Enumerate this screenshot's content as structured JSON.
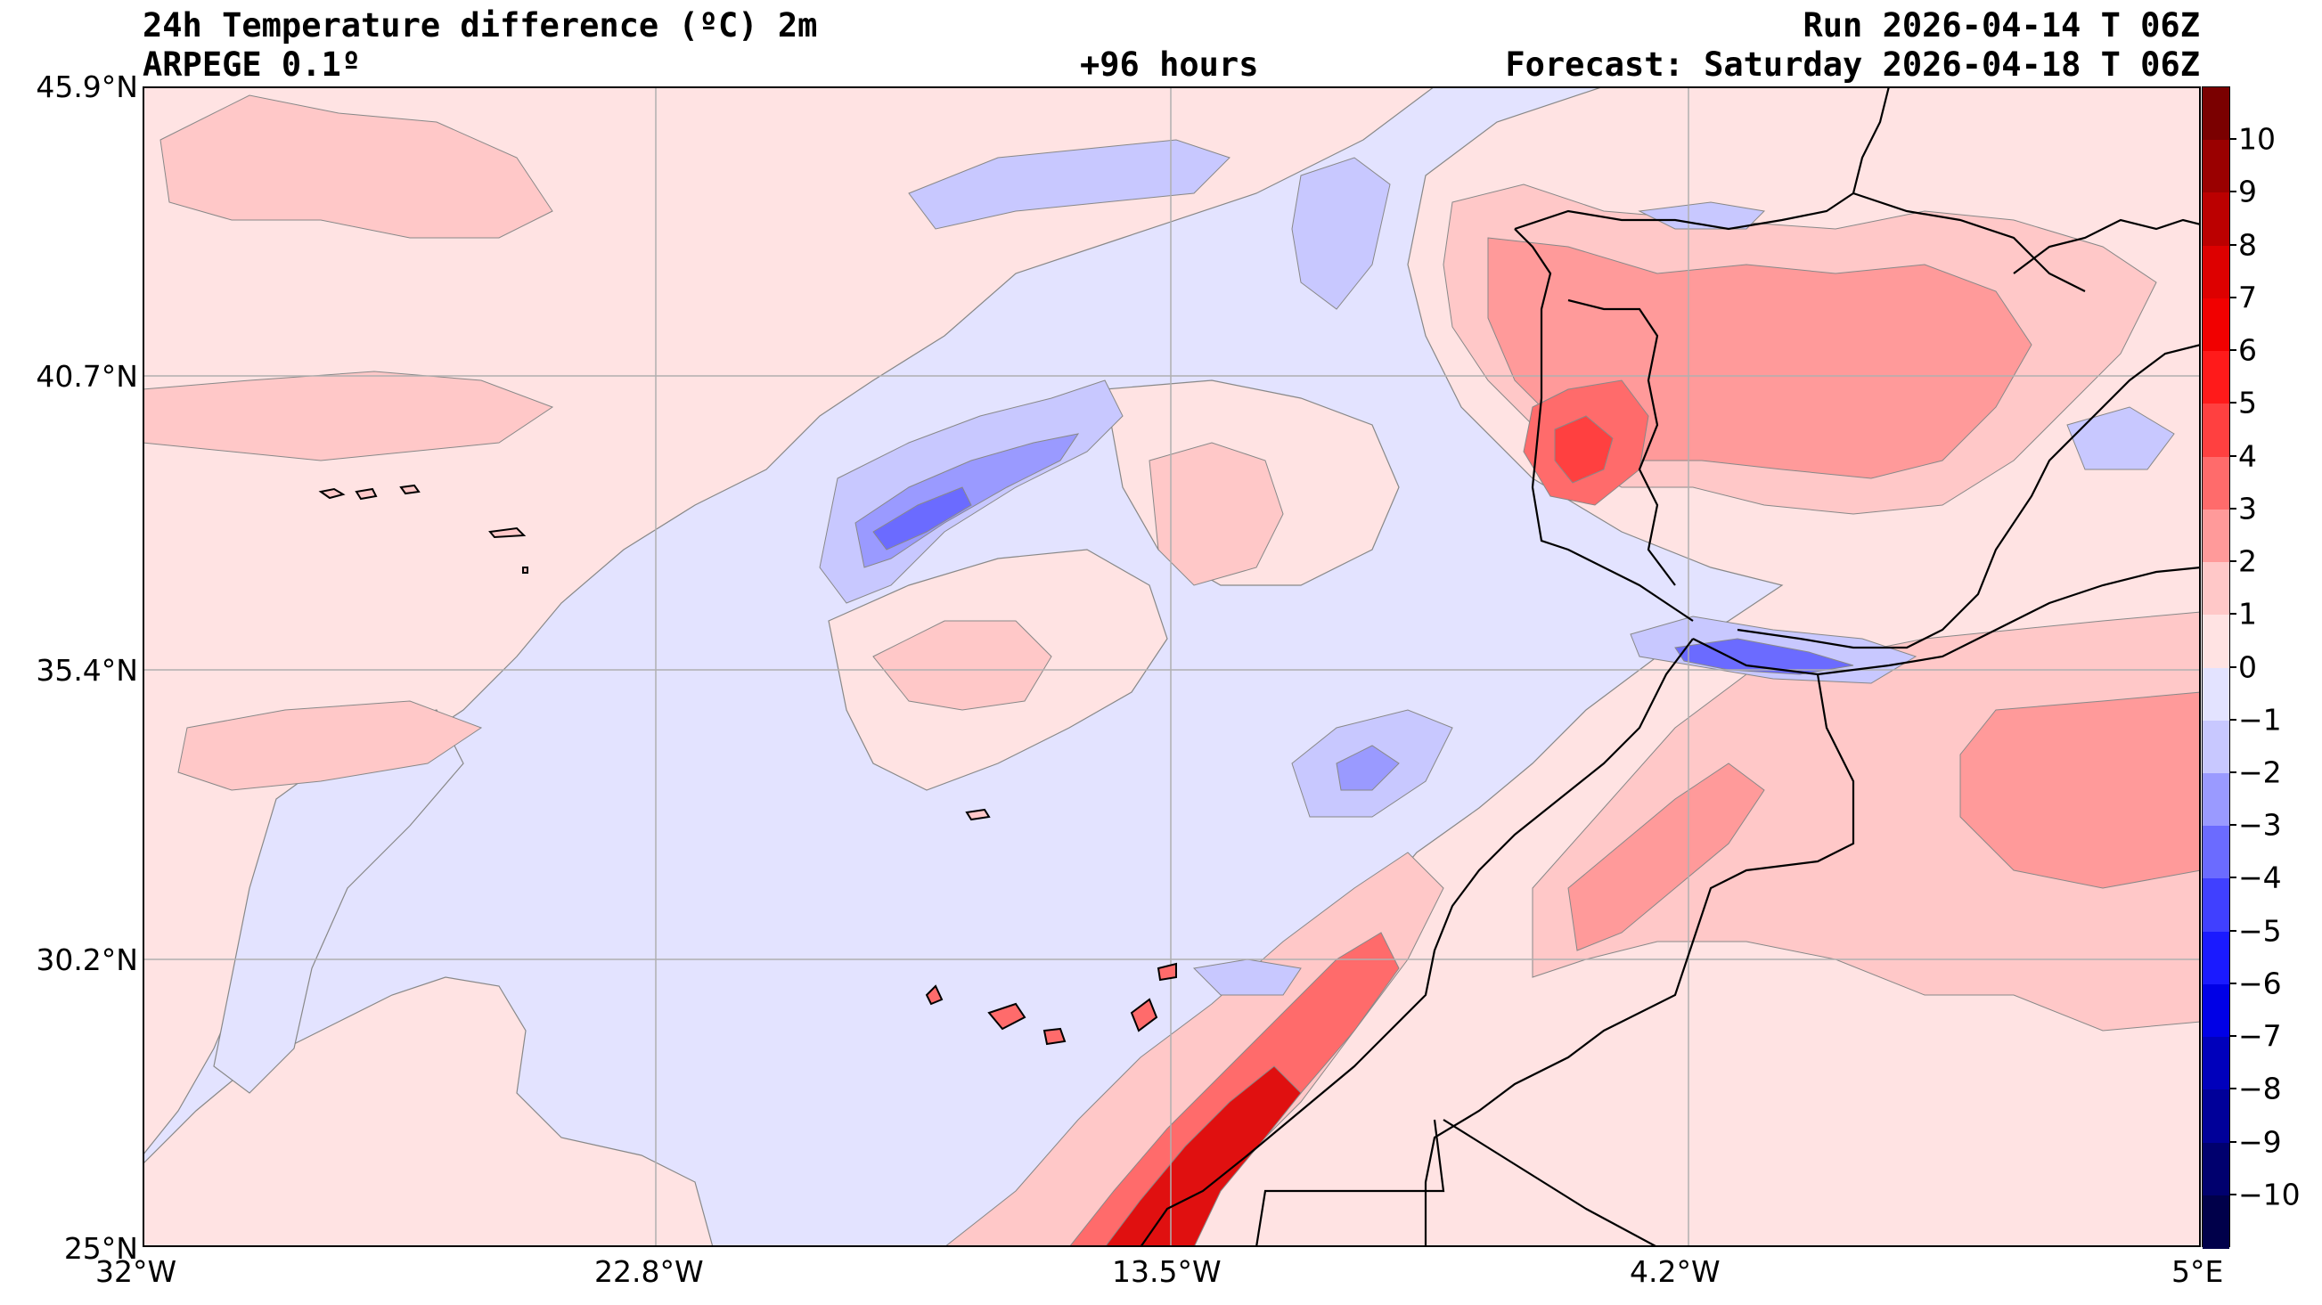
{
  "header": {
    "title": "24h Temperature difference (ºC) 2m",
    "model": "ARPEGE 0.1º",
    "lead_time": "+96 hours",
    "run": "Run 2026-04-14 T 06Z",
    "forecast": "Forecast: Saturday 2026-04-18 T 06Z"
  },
  "map": {
    "lon_range": [
      -32,
      5
    ],
    "lat_range": [
      25,
      45.9
    ],
    "x_ticks": [
      "32°W",
      "22.8°W",
      "13.5°W",
      "4.2°W",
      "5°E"
    ],
    "y_ticks": [
      "45.9°N",
      "40.7°N",
      "35.4°N",
      "30.2°N",
      "25°N"
    ],
    "grid": true
  },
  "colorbar": {
    "levels": [
      "10",
      "9",
      "8",
      "7",
      "6",
      "5",
      "4",
      "3",
      "2",
      "1",
      "0",
      "−1",
      "−2",
      "−3",
      "−4",
      "−5",
      "−6",
      "−7",
      "−8",
      "−9",
      "−10"
    ],
    "colors": [
      "#7a0000",
      "#9a0000",
      "#bb0000",
      "#dd0000",
      "#f10000",
      "#ff1a1a",
      "#ff4040",
      "#ff6b6b",
      "#ff9a9a",
      "#ffc8c8",
      "#ffe3e3",
      "#e3e3ff",
      "#c8c8ff",
      "#9a9aff",
      "#6b6bff",
      "#4040ff",
      "#1a1aff",
      "#0000e6",
      "#0000bb",
      "#000099",
      "#00006e",
      "#00004a"
    ]
  },
  "field_colors": {
    "ocean_base": "#e3e3ff",
    "warm_1": "#ffe3e3",
    "warm_2": "#ffc8c8",
    "warm_3": "#ff9a9a",
    "warm_4": "#ff6b6b",
    "warm_5": "#ff4040",
    "warm_6": "#e01010",
    "cool_1": "#c8c8ff",
    "cool_2": "#9a9aff",
    "cool_3": "#6b6bff",
    "cool_4": "#3a3aff"
  }
}
